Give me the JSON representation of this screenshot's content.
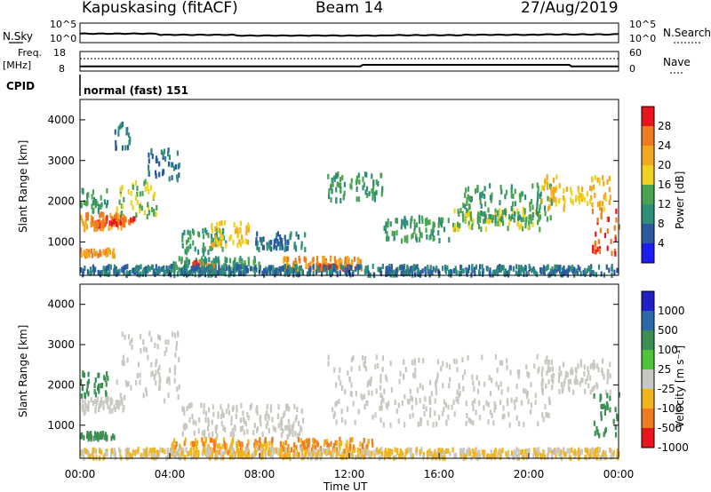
{
  "header": {
    "site": "Kapuskasing (fitACF)",
    "beam": "Beam 14",
    "date": "27/Aug/2019"
  },
  "panels": {
    "nsky": {
      "label": "N.Sky",
      "ticks_left": [
        "10^5",
        "10^0"
      ],
      "ticks_right": [
        "10^5",
        "10^0"
      ],
      "right_label": "N.Search"
    },
    "freq": {
      "label_line1": "Freq.",
      "label_line2": "[MHz]",
      "ticks_left": [
        "18",
        "8"
      ],
      "ticks_right": [
        "60",
        "0"
      ],
      "right_label": "Nave"
    },
    "cpid": {
      "label": "CPID",
      "mode_text": "normal (fast) 151"
    }
  },
  "power_panel": {
    "ylabel": "Slant Range [km]",
    "cbar_label": "Power [dB]",
    "cbar_ticks": [
      "28",
      "24",
      "20",
      "16",
      "12",
      "8",
      "4"
    ],
    "cbar_colors": [
      "#e8141e",
      "#f07a20",
      "#f2a81e",
      "#f0d21e",
      "#49a352",
      "#2f8e77",
      "#2b5aa0",
      "#1d1df0"
    ]
  },
  "velocity_panel": {
    "ylabel": "Slant Range [km]",
    "cbar_label": "Velocity [m s⁻¹]",
    "cbar_ticks": [
      "1000",
      "500",
      "100",
      "25",
      "-25",
      "-100",
      "-500",
      "-1000"
    ],
    "cbar_colors": [
      "#1f1fc4",
      "#2b6aa8",
      "#3c8f52",
      "#4fc23a",
      "#c8c8c0",
      "#f2b41e",
      "#f07a20",
      "#e8141e"
    ]
  },
  "xaxis": {
    "label": "Time UT",
    "ticks": [
      "00:00",
      "04:00",
      "08:00",
      "12:00",
      "16:00",
      "20:00",
      "00:00"
    ]
  },
  "chart_data": {
    "type": "heatmap",
    "title": "Kapuskasing (fitACF)  Beam 14  27/Aug/2019",
    "x_range_hours": [
      0,
      24
    ],
    "xlabel": "Time UT",
    "y_range_km": [
      180,
      4500
    ],
    "yticks": [
      1000,
      2000,
      3000,
      4000
    ],
    "nsky_log_levels": [
      2.3,
      2.0,
      1.8,
      1.8,
      1.9,
      2.0,
      2.1,
      2.2
    ],
    "frequency_mhz": [
      {
        "t": 0,
        "f": 10.4
      },
      {
        "t": 12.5,
        "f": 10.4
      },
      {
        "t": 12.6,
        "f": 11.2
      },
      {
        "t": 21.8,
        "f": 11.2
      },
      {
        "t": 21.9,
        "f": 10.4
      },
      {
        "t": 24,
        "f": 10.4
      }
    ],
    "nave_level": 40,
    "power_db": [
      {
        "t0": 0.0,
        "t1": 1.2,
        "r0": 1700,
        "r1": 2300,
        "p": 12
      },
      {
        "t0": 0.0,
        "t1": 2.0,
        "r0": 1300,
        "r1": 1700,
        "p": 24
      },
      {
        "t0": 0.5,
        "t1": 2.4,
        "r0": 1400,
        "r1": 1600,
        "p": 28
      },
      {
        "t0": 0.0,
        "t1": 1.5,
        "r0": 650,
        "r1": 800,
        "p": 24
      },
      {
        "t0": 1.6,
        "t1": 3.4,
        "r0": 1600,
        "r1": 2500,
        "p": 16
      },
      {
        "t0": 3.0,
        "t1": 4.4,
        "r0": 2500,
        "r1": 3300,
        "p": 8
      },
      {
        "t0": 1.5,
        "t1": 2.2,
        "r0": 3300,
        "r1": 3900,
        "p": 8
      },
      {
        "t0": 4.5,
        "t1": 6.5,
        "r0": 700,
        "r1": 1300,
        "p": 12
      },
      {
        "t0": 5.8,
        "t1": 7.5,
        "r0": 900,
        "r1": 1500,
        "p": 20
      },
      {
        "t0": 7.8,
        "t1": 10.0,
        "r0": 800,
        "r1": 1200,
        "p": 8
      },
      {
        "t0": 4.0,
        "t1": 8.0,
        "r0": 300,
        "r1": 600,
        "p": 12
      },
      {
        "t0": 5.0,
        "t1": 6.0,
        "r0": 350,
        "r1": 500,
        "p": 28
      },
      {
        "t0": 9.0,
        "t1": 12.5,
        "r0": 300,
        "r1": 600,
        "p": 24
      },
      {
        "t0": 10.5,
        "t1": 12.0,
        "r0": 280,
        "r1": 420,
        "p": 28
      },
      {
        "t0": 11.0,
        "t1": 13.5,
        "r0": 2000,
        "r1": 2700,
        "p": 12
      },
      {
        "t0": 13.5,
        "t1": 16.5,
        "r0": 1000,
        "r1": 1600,
        "p": 12
      },
      {
        "t0": 16.5,
        "t1": 20.5,
        "r0": 1300,
        "r1": 1800,
        "p": 16
      },
      {
        "t0": 17.0,
        "t1": 21.0,
        "r0": 1500,
        "r1": 2400,
        "p": 12
      },
      {
        "t0": 20.5,
        "t1": 23.6,
        "r0": 1800,
        "r1": 2600,
        "p": 20
      },
      {
        "t0": 22.8,
        "t1": 24.0,
        "r0": 700,
        "r1": 1800,
        "p": 28
      },
      {
        "t0": 0.0,
        "t1": 24.0,
        "r0": 180,
        "r1": 400,
        "p": 8
      }
    ],
    "velocity_ms": [
      {
        "t0": 0.0,
        "t1": 1.2,
        "r0": 1700,
        "r1": 2300,
        "v": 100
      },
      {
        "t0": 0.0,
        "t1": 2.0,
        "r0": 1300,
        "r1": 1700,
        "v": 0
      },
      {
        "t0": 0.0,
        "t1": 1.5,
        "r0": 650,
        "r1": 800,
        "v": 100
      },
      {
        "t0": 1.6,
        "t1": 4.4,
        "r0": 1600,
        "r1": 3300,
        "v": 0
      },
      {
        "t0": 4.5,
        "t1": 10.0,
        "r0": 700,
        "r1": 1500,
        "v": 0
      },
      {
        "t0": 4.0,
        "t1": 13.0,
        "r0": 250,
        "r1": 650,
        "v": -100
      },
      {
        "t0": 11.0,
        "t1": 21.0,
        "r0": 1000,
        "r1": 2700,
        "v": 0
      },
      {
        "t0": 20.5,
        "t1": 23.6,
        "r0": 1800,
        "r1": 2600,
        "v": 0
      },
      {
        "t0": 22.8,
        "t1": 24.0,
        "r0": 700,
        "r1": 1800,
        "v": 100
      },
      {
        "t0": 0.0,
        "t1": 24.0,
        "r0": 180,
        "r1": 400,
        "v": -25
      }
    ]
  }
}
